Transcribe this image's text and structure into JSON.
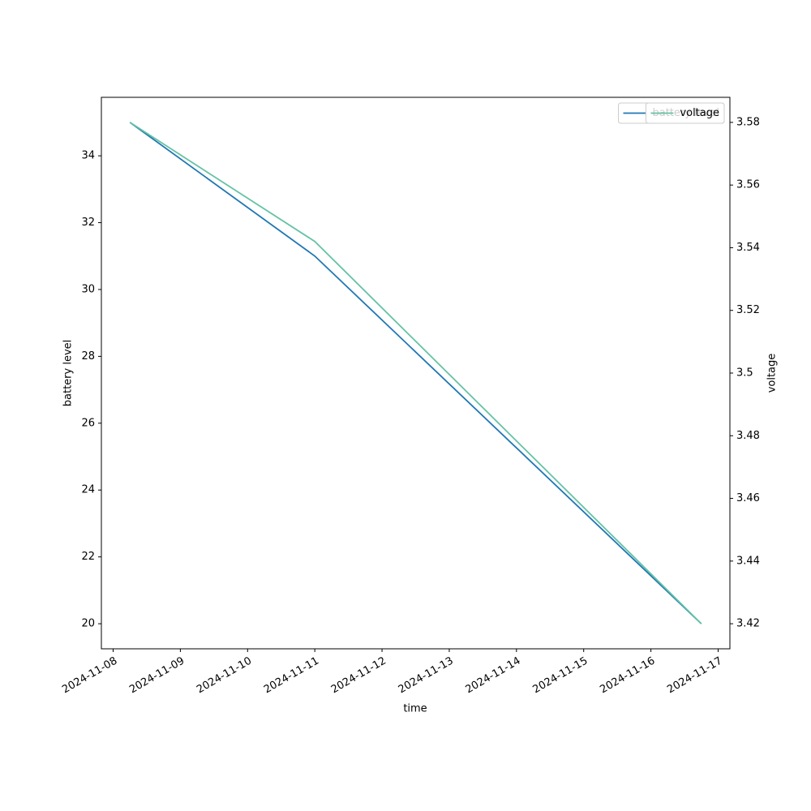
{
  "chart_data": {
    "type": "line",
    "xlabel": "time",
    "ylabel": "battery level",
    "y2label": "voltage",
    "x": [
      "2024-11-08T06:00",
      "2024-11-11T00:00",
      "2024-11-16T18:00"
    ],
    "series": [
      {
        "name": "battery level",
        "color": "#1f77b4",
        "values": [
          35,
          31,
          20
        ]
      },
      {
        "name": "voltage",
        "color": "#66c2a5",
        "values": [
          3.58,
          3.542,
          3.42
        ],
        "axis": "y2"
      }
    ],
    "xlim": [
      "2024-11-07T19:48",
      "2024-11-17T04:12"
    ],
    "xticks": [
      "2024-11-08",
      "2024-11-09",
      "2024-11-10",
      "2024-11-11",
      "2024-11-12",
      "2024-11-13",
      "2024-11-14",
      "2024-11-15",
      "2024-11-16",
      "2024-11-17"
    ],
    "ylim": [
      19.25,
      35.75
    ],
    "yticks": [
      20,
      22,
      24,
      26,
      28,
      30,
      32,
      34
    ],
    "y2lim": [
      3.412,
      3.588
    ],
    "y2ticks": [
      3.42,
      3.44,
      3.46,
      3.48,
      3.5,
      3.52,
      3.54,
      3.56,
      3.58
    ],
    "legend": "upper right",
    "grid": false
  }
}
